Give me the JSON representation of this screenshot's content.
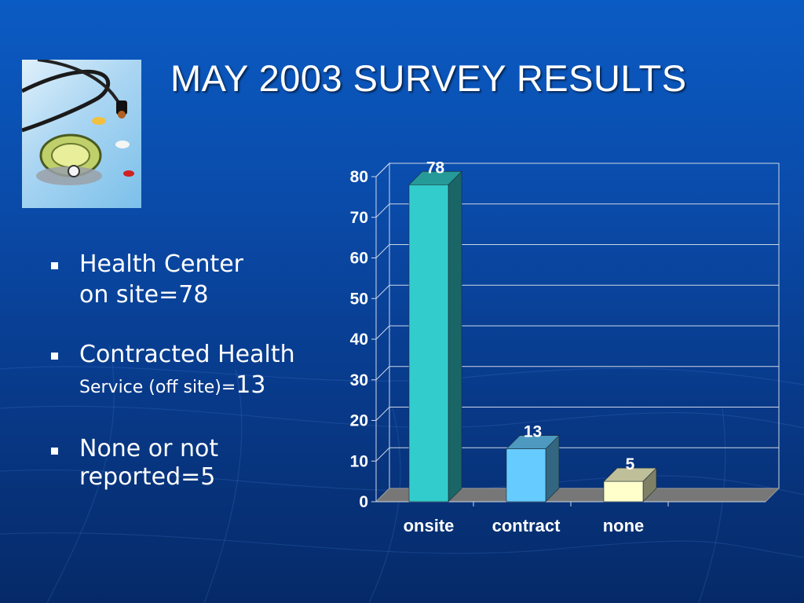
{
  "title": "MAY 2003 SURVEY RESULTS",
  "bullets": [
    {
      "line1": "Health Center",
      "line2": "on site=78"
    },
    {
      "line1": "Contracted Health",
      "line2_small": "Service (off site)=",
      "line2_big": "13"
    },
    {
      "line1": "None or not",
      "line2": "reported=5"
    }
  ],
  "image": {
    "description_icon": "stethoscope-icon"
  },
  "colors": {
    "bg": "#0a4aa8",
    "text": "#ffffff",
    "bar_onsite": "#33cccc",
    "bar_contract": "#66ccff",
    "bar_none": "#ffffcc",
    "floor": "#777777"
  },
  "chart_data": {
    "type": "bar",
    "categories": [
      "onsite",
      "contract",
      "none"
    ],
    "values": [
      78,
      13,
      5
    ],
    "data_labels": [
      "78",
      "13",
      "5"
    ],
    "yticks": [
      "0",
      "10",
      "20",
      "30",
      "40",
      "50",
      "60",
      "70",
      "80"
    ],
    "ylim": [
      0,
      80
    ],
    "grid": true,
    "legend": false,
    "title": "",
    "xlabel": "",
    "ylabel": ""
  }
}
